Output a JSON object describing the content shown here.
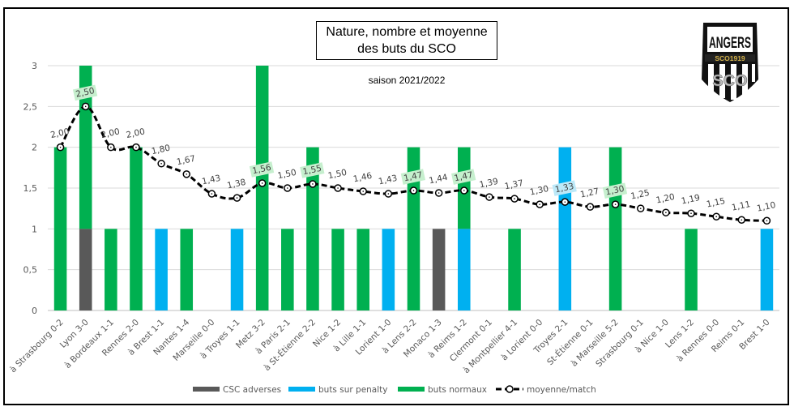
{
  "chart_data": {
    "type": "bar",
    "stacked": true,
    "title": "Nature, nombre et moyenne des buts du SCO",
    "subtitle": "saison 2021/2022",
    "xlabel": "",
    "ylabel": "",
    "ylim": [
      0,
      3
    ],
    "yticks": [
      "0",
      "0,5",
      "1",
      "1,5",
      "2",
      "2,5",
      "3"
    ],
    "ytick_values": [
      0,
      0.5,
      1,
      1.5,
      2,
      2.5,
      3
    ],
    "grid": true,
    "legend_position": "bottom",
    "categories": [
      "à Strasbourg 0-2",
      "Lyon 3-0",
      "à Bordeaux 1-1",
      "Rennes 2-0",
      "à Brest 1-1",
      "Nantes 1-4",
      "Marseille 0-0",
      "à Troyes 1-1",
      "Metz 3-2",
      "à Paris 2-1",
      "à St-Étienne 2-2",
      "Nice 1-2",
      "à Lille 1-1",
      "Lorient 1-0",
      "à Lens 2-2",
      "Monaco 1-3",
      "à Reims 1-2",
      "Clermont 0-1",
      "à Montpellier 4-1",
      "à Lorient 0-0",
      "Troyes 2-1",
      "St-Étienne 0-1",
      "à Marseille 5-2",
      "Strasbourg 0-1",
      "à Nice 1-0",
      "Lens 1-2",
      "à Rennes 0-0",
      "Reims 0-1",
      "Brest 1-0"
    ],
    "series": [
      {
        "name": "CSC adverses",
        "kind": "bar",
        "color": "#595959",
        "values": [
          0,
          1,
          0,
          0,
          0,
          0,
          0,
          0,
          0,
          0,
          0,
          0,
          0,
          0,
          0,
          1,
          0,
          0,
          0,
          0,
          0,
          0,
          0,
          0,
          0,
          0,
          0,
          0,
          0
        ]
      },
      {
        "name": "buts sur penalty",
        "kind": "bar",
        "color": "#00B0F0",
        "values": [
          0,
          0,
          0,
          0,
          1,
          0,
          0,
          1,
          0,
          0,
          0,
          0,
          0,
          1,
          0,
          0,
          1,
          0,
          0,
          0,
          2,
          0,
          0,
          0,
          0,
          0,
          0,
          0,
          1
        ]
      },
      {
        "name": "buts normaux",
        "kind": "bar",
        "color": "#00B050",
        "values": [
          2,
          2,
          1,
          2,
          0,
          1,
          0,
          0,
          3,
          1,
          2,
          1,
          1,
          0,
          2,
          0,
          1,
          0,
          1,
          0,
          0,
          0,
          2,
          0,
          0,
          1,
          0,
          0,
          0
        ]
      },
      {
        "name": "moyenne/match",
        "kind": "line",
        "style": "dashed",
        "color": "#000000",
        "values": [
          2.0,
          2.5,
          2.0,
          2.0,
          1.8,
          1.67,
          1.43,
          1.38,
          1.56,
          1.5,
          1.55,
          1.5,
          1.46,
          1.43,
          1.47,
          1.44,
          1.47,
          1.39,
          1.37,
          1.3,
          1.33,
          1.27,
          1.3,
          1.25,
          1.2,
          1.19,
          1.15,
          1.11,
          1.1
        ],
        "labels": [
          "2,00",
          "2,50",
          "2,00",
          "2,00",
          "1,80",
          "1,67",
          "1,43",
          "1,38",
          "1,56",
          "1,50",
          "1,55",
          "1,50",
          "1,46",
          "1,43",
          "1,47",
          "1,44",
          "1,47",
          "1,39",
          "1,37",
          "1,30",
          "1,33",
          "1,27",
          "1,30",
          "1,25",
          "1,20",
          "1,19",
          "1,15",
          "1,11",
          "1,10"
        ]
      }
    ]
  },
  "logo": {
    "name": "ANGERS",
    "banner": "SCO1919",
    "mono": "SCO"
  }
}
